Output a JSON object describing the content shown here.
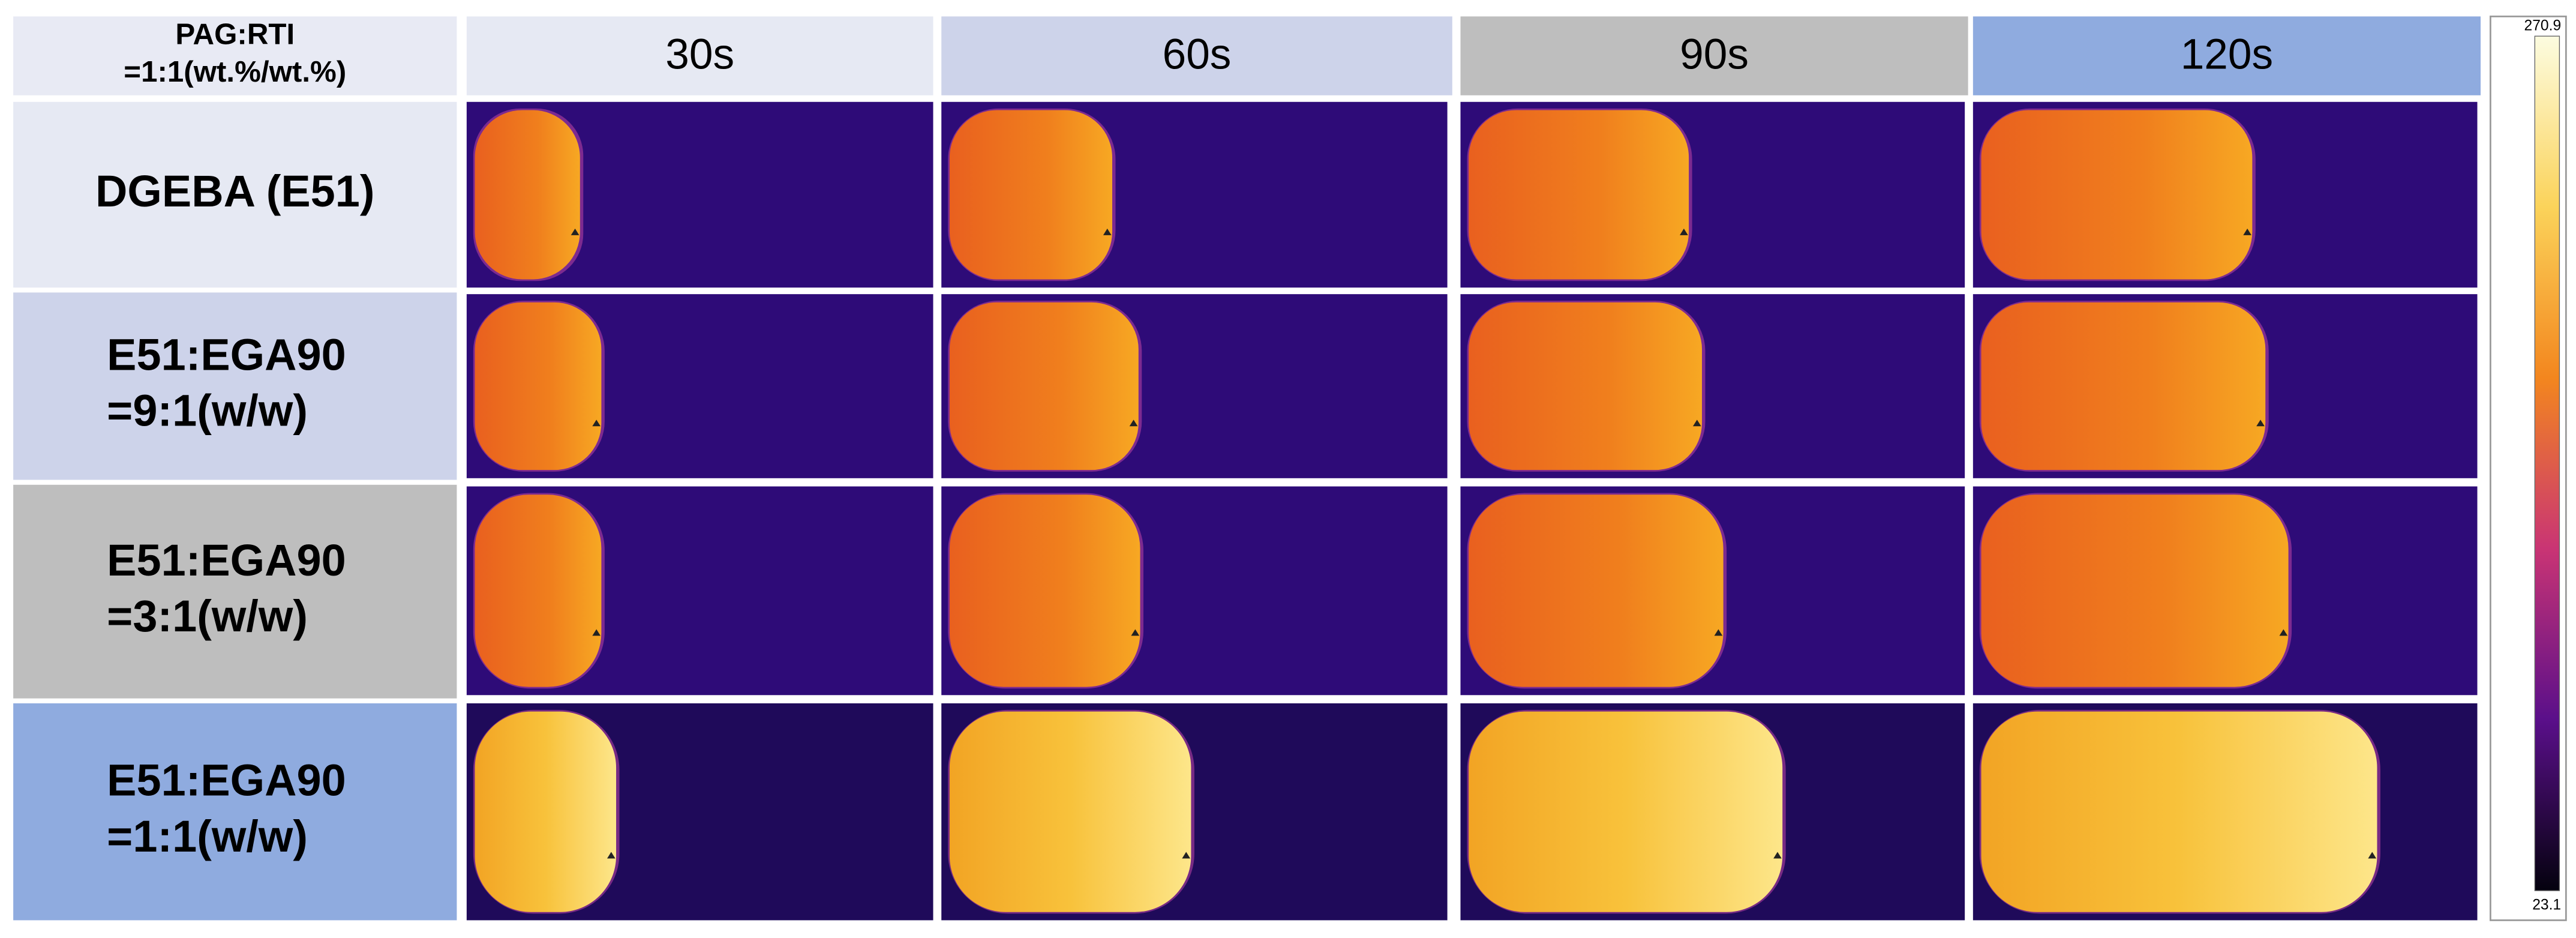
{
  "header": {
    "corner": [
      "PAG:RTI",
      "=1:1(wt.%/wt.%)"
    ],
    "columns": [
      "30s",
      "60s",
      "90s",
      "120s"
    ]
  },
  "rows": [
    {
      "label": [
        "DGEBA (E51)"
      ]
    },
    {
      "label": [
        "E51:EGA90",
        "=9:1(w/w)"
      ]
    },
    {
      "label": [
        "E51:EGA90",
        "=3:1(w/w)"
      ]
    },
    {
      "label": [
        "E51:EGA90",
        "=1:1(w/w)"
      ]
    }
  ],
  "colorbar": {
    "max": "270.9",
    "min": "23.1"
  }
}
